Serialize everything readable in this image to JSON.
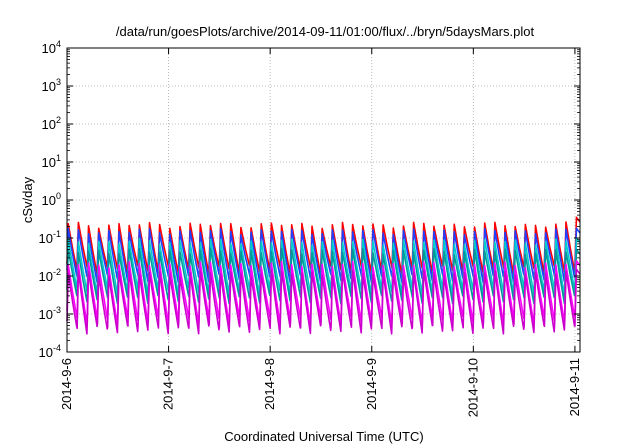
{
  "chart_data": {
    "type": "line",
    "title": "/data/run/goesPlots/archive/2014-09-11/01:00/flux/../bryn/5daysMars.plot",
    "xlabel": "Coordinated Universal Time (UTC)",
    "ylabel": "cSv/day",
    "yscale": "log",
    "ylim": [
      0.0001,
      10000
    ],
    "xlim": [
      0,
      5.05
    ],
    "grid": true,
    "ytick_values": [
      0.0001,
      0.001,
      0.01,
      0.1,
      1,
      10,
      100,
      1000,
      10000
    ],
    "ytick_labels": [
      {
        "base": "10",
        "exp": "-4"
      },
      {
        "base": "10",
        "exp": "-3"
      },
      {
        "base": "10",
        "exp": "-2"
      },
      {
        "base": "10",
        "exp": "-1"
      },
      {
        "base": "10",
        "exp": "0"
      },
      {
        "base": "10",
        "exp": "1"
      },
      {
        "base": "10",
        "exp": "2"
      },
      {
        "base": "10",
        "exp": "3"
      },
      {
        "base": "10",
        "exp": "4"
      }
    ],
    "xtick_values": [
      0,
      1,
      2,
      3,
      4,
      5
    ],
    "xtick_labels": [
      "2014-9-6",
      "2014-9-7",
      "2014-9-8",
      "2014-9-9",
      "2014-9-10",
      "2014-9-11"
    ],
    "sawtooth_period_days": 0.1,
    "series": [
      {
        "color": "#ff0000",
        "peak": 0.22,
        "trough": 0.015
      },
      {
        "color": "#2040ff",
        "peak": 0.15,
        "trough": 0.009
      },
      {
        "color": "#00cccc",
        "peak": 0.08,
        "trough": 0.004
      },
      {
        "color": "#009999",
        "peak": 0.045,
        "trough": 0.0025
      },
      {
        "color": "#ff00ff",
        "peak": 0.02,
        "trough": 0.0007
      },
      {
        "color": "#cc00cc",
        "peak": 0.012,
        "trough": 0.0004
      }
    ],
    "final_values": [
      0.35,
      0.18,
      0.1,
      0.05,
      0.025,
      0.015
    ]
  }
}
